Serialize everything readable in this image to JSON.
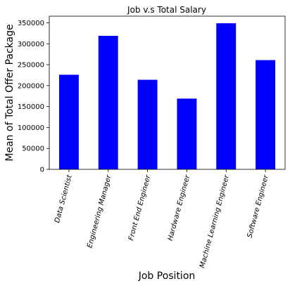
{
  "chart_data": {
    "type": "bar",
    "title": "Job v.s Total Salary",
    "xlabel": "Job Position",
    "ylabel": "Mean of Total Offer Package",
    "categories": [
      "Data Scientist",
      "Engineering Manager",
      "Front End Engineer",
      "Hardware Engineer",
      "Machine Learning Engineer",
      "Software Engineer"
    ],
    "values": [
      226000,
      319000,
      214000,
      169000,
      349000,
      261000
    ],
    "ylim": [
      0,
      366000
    ],
    "yticks": [
      0,
      50000,
      100000,
      150000,
      200000,
      250000,
      300000,
      350000
    ],
    "ytick_labels": [
      "0",
      "50000",
      "100000",
      "150000",
      "200000",
      "250000",
      "300000",
      "350000"
    ],
    "bar_color": "#0000ff",
    "grid": false,
    "legend": "none"
  }
}
